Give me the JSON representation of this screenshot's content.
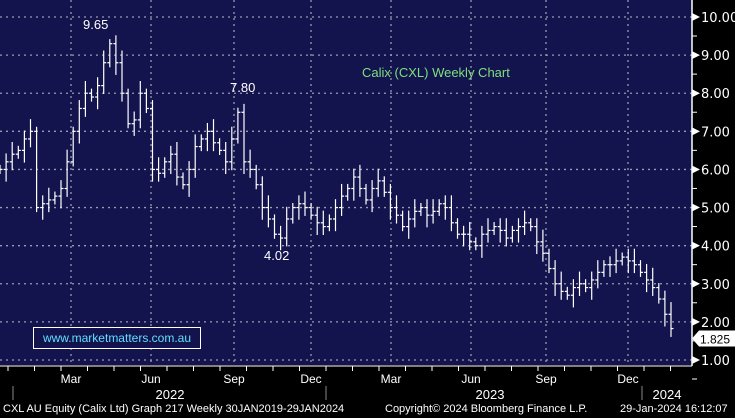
{
  "chart_data": {
    "type": "ohlc",
    "title": "Calix (CXL) Weekly Chart",
    "frequency": "weekly",
    "ylim": [
      1,
      10
    ],
    "yticks": [
      "1.00",
      "2.00",
      "3.00",
      "4.00",
      "5.00",
      "6.00",
      "7.00",
      "8.00",
      "9.00",
      "10.00"
    ],
    "xticks": [
      "Mar",
      "Jun",
      "Sep",
      "Dec",
      "Mar",
      "Jun",
      "Sep",
      "Dec"
    ],
    "years": [
      "2022",
      "2023",
      "2024"
    ],
    "last_price": "1.825",
    "annotations": [
      {
        "text": "9.65",
        "value": 9.65
      },
      {
        "text": "7.80",
        "value": 7.8
      },
      {
        "text": "4.02",
        "value": 4.02
      }
    ],
    "closes": [
      6.0,
      6.2,
      6.4,
      6.5,
      6.8,
      7.0,
      5.0,
      5.1,
      5.2,
      5.3,
      5.5,
      6.2,
      7.0,
      7.6,
      8.0,
      7.9,
      8.2,
      8.8,
      9.3,
      8.8,
      8.0,
      7.2,
      7.3,
      8.0,
      7.6,
      6.0,
      5.9,
      6.2,
      6.4,
      5.8,
      5.6,
      6.0,
      6.6,
      6.8,
      7.0,
      6.7,
      6.5,
      6.2,
      6.8,
      7.5,
      6.2,
      6.0,
      5.6,
      5.0,
      4.7,
      4.3,
      4.2,
      4.7,
      5.0,
      5.1,
      5.0,
      4.8,
      4.6,
      4.5,
      4.7,
      5.0,
      5.3,
      5.5,
      5.8,
      5.5,
      5.2,
      5.5,
      5.7,
      5.4,
      5.0,
      4.8,
      4.5,
      4.7,
      4.9,
      5.0,
      4.8,
      4.9,
      5.1,
      5.0,
      4.6,
      4.3,
      4.3,
      4.1,
      4.0,
      4.3,
      4.4,
      4.5,
      4.4,
      4.2,
      4.4,
      4.5,
      4.6,
      4.5,
      4.1,
      3.8,
      3.4,
      3.0,
      2.8,
      2.7,
      2.9,
      3.0,
      2.9,
      3.1,
      3.3,
      3.5,
      3.5,
      3.6,
      3.7,
      3.6,
      3.5,
      3.3,
      3.1,
      2.9,
      2.6,
      2.2,
      1.825
    ]
  },
  "website": "www.marketmatters.com.au",
  "footer": {
    "left": "CXL AU Equity (Calix Ltd) Graph 217  Weekly 30JAN2019-29JAN2024",
    "center": "Copyright© 2024 Bloomberg Finance L.P.",
    "right": "29-Jan-2024 16:12:07"
  },
  "colors": {
    "bg": "#13134d",
    "title": "#7fe07f",
    "site": "#5fe0ff"
  }
}
